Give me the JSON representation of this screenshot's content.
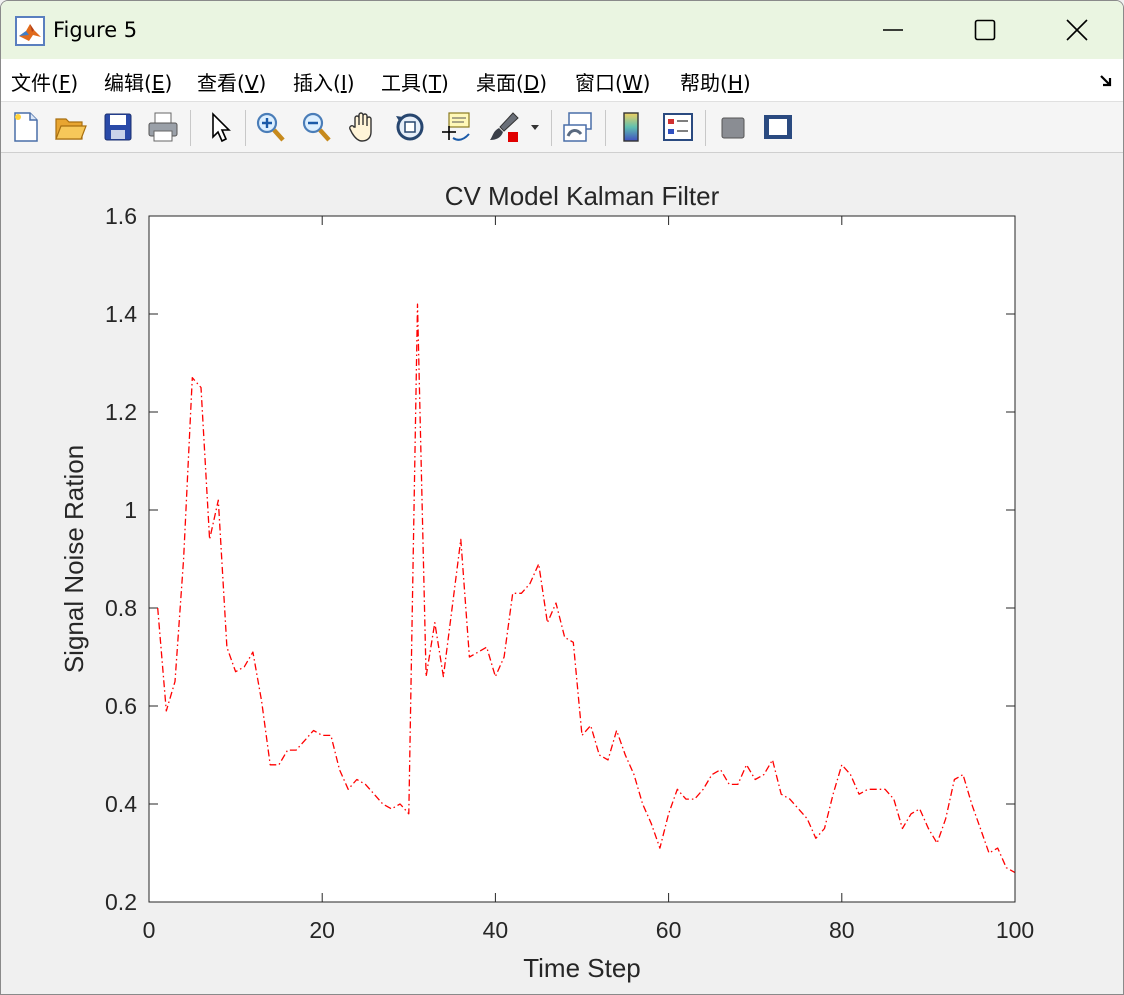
{
  "window": {
    "title": "Figure 5",
    "app_icon": "matlab-logo-icon",
    "controls": [
      "minimize-icon",
      "maximize-icon",
      "close-icon"
    ]
  },
  "menubar": {
    "items": [
      {
        "label": "文件(",
        "key": "F",
        "tail": ")"
      },
      {
        "label": "编辑(",
        "key": "E",
        "tail": ")"
      },
      {
        "label": "查看(",
        "key": "V",
        "tail": ")"
      },
      {
        "label": "插入(",
        "key": "I",
        "tail": ")"
      },
      {
        "label": "工具(",
        "key": "T",
        "tail": ")"
      },
      {
        "label": "桌面(",
        "key": "D",
        "tail": ")"
      },
      {
        "label": "窗口(",
        "key": "W",
        "tail": ")"
      },
      {
        "label": "帮助(",
        "key": "H",
        "tail": ")"
      }
    ],
    "corner_icon": "dock-arrow-icon"
  },
  "toolbar": {
    "icons": [
      "new-figure-icon",
      "open-file-icon",
      "save-icon",
      "print-icon",
      "pointer-icon",
      "zoom-in-icon",
      "zoom-out-icon",
      "pan-hand-icon",
      "rotate-3d-icon",
      "data-cursor-icon",
      "brush-icon",
      "brush-dropdown-icon",
      "link-plot-icon",
      "colorbar-icon",
      "legend-icon",
      "hide-plot-tools-icon",
      "show-plot-tools-icon"
    ]
  },
  "chart_data": {
    "type": "line",
    "title": "CV Model Kalman Filter",
    "xlabel": "Time Step",
    "ylabel": "Signal Noise Ration",
    "xlim": [
      0,
      100
    ],
    "ylim": [
      0.2,
      1.6
    ],
    "xticks": [
      "0",
      "20",
      "40",
      "60",
      "80",
      "100"
    ],
    "yticks": [
      "0.2",
      "0.4",
      "0.6",
      "0.8",
      "1",
      "1.2",
      "1.4",
      "1.6"
    ],
    "grid": false,
    "series": [
      {
        "color": "#ff0000",
        "line_style": "dash-dot",
        "x": [
          1,
          2,
          3,
          4,
          5,
          6,
          7,
          8,
          9,
          10,
          11,
          12,
          13,
          14,
          15,
          16,
          17,
          18,
          19,
          20,
          21,
          22,
          23,
          24,
          25,
          26,
          27,
          28,
          29,
          30,
          31,
          32,
          33,
          34,
          35,
          36,
          37,
          38,
          39,
          40,
          41,
          42,
          43,
          44,
          45,
          46,
          47,
          48,
          49,
          50,
          51,
          52,
          53,
          54,
          55,
          56,
          57,
          58,
          59,
          60,
          61,
          62,
          63,
          64,
          65,
          66,
          67,
          68,
          69,
          70,
          71,
          72,
          73,
          74,
          75,
          76,
          77,
          78,
          79,
          80,
          81,
          82,
          83,
          84,
          85,
          86,
          87,
          88,
          89,
          90,
          91,
          92,
          93,
          94,
          95,
          96,
          97,
          98,
          99,
          100
        ],
        "y": [
          0.8,
          0.59,
          0.65,
          0.9,
          1.27,
          1.25,
          0.94,
          1.02,
          0.72,
          0.67,
          0.68,
          0.71,
          0.61,
          0.48,
          0.48,
          0.51,
          0.51,
          0.53,
          0.55,
          0.54,
          0.54,
          0.47,
          0.43,
          0.45,
          0.44,
          0.42,
          0.4,
          0.39,
          0.4,
          0.38,
          1.42,
          0.66,
          0.77,
          0.66,
          0.8,
          0.94,
          0.7,
          0.71,
          0.72,
          0.66,
          0.7,
          0.83,
          0.83,
          0.85,
          0.89,
          0.77,
          0.81,
          0.74,
          0.73,
          0.54,
          0.56,
          0.5,
          0.49,
          0.55,
          0.5,
          0.46,
          0.4,
          0.36,
          0.31,
          0.38,
          0.43,
          0.41,
          0.41,
          0.43,
          0.46,
          0.47,
          0.44,
          0.44,
          0.48,
          0.45,
          0.46,
          0.49,
          0.42,
          0.41,
          0.39,
          0.37,
          0.33,
          0.35,
          0.42,
          0.48,
          0.46,
          0.42,
          0.43,
          0.43,
          0.43,
          0.41,
          0.35,
          0.38,
          0.39,
          0.35,
          0.32,
          0.37,
          0.45,
          0.46,
          0.4,
          0.35,
          0.3,
          0.31,
          0.27,
          0.26
        ]
      }
    ]
  }
}
